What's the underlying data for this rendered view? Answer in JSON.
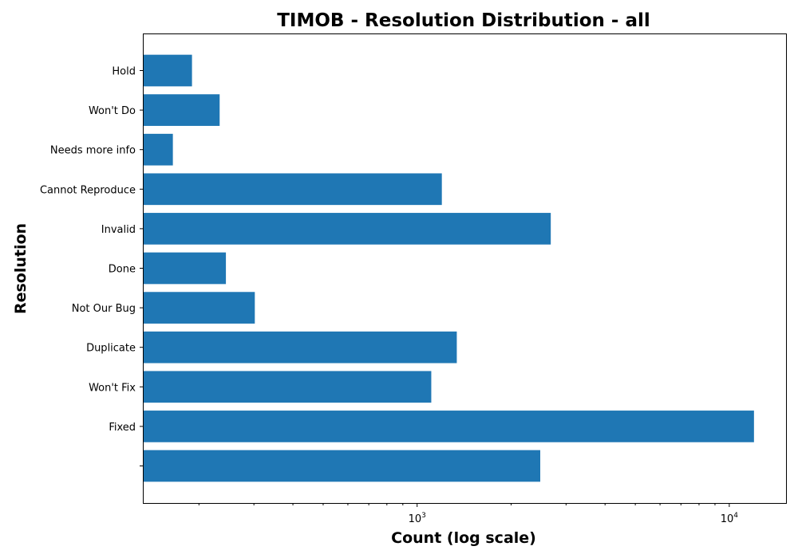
{
  "chart_data": {
    "type": "bar",
    "orientation": "horizontal",
    "title": "TIMOB - Resolution Distribution - all",
    "xlabel": "Count (log scale)",
    "ylabel": "Resolution",
    "x_scale": "log",
    "xlim": [
      133,
      15200
    ],
    "x_major_ticks": [
      {
        "value": 1000,
        "base": "10",
        "exp": "3"
      },
      {
        "value": 10000,
        "base": "10",
        "exp": "4"
      }
    ],
    "categories": [
      "",
      "Fixed",
      "Won't Fix",
      "Duplicate",
      "Not Our Bug",
      "Done",
      "Invalid",
      "Cannot Reproduce",
      "Needs more info",
      "Won't Do",
      "Hold"
    ],
    "values": [
      2480,
      12000,
      1110,
      1340,
      302,
      244,
      2680,
      1200,
      165,
      233,
      190
    ],
    "bar_color": "#1f77b4"
  }
}
